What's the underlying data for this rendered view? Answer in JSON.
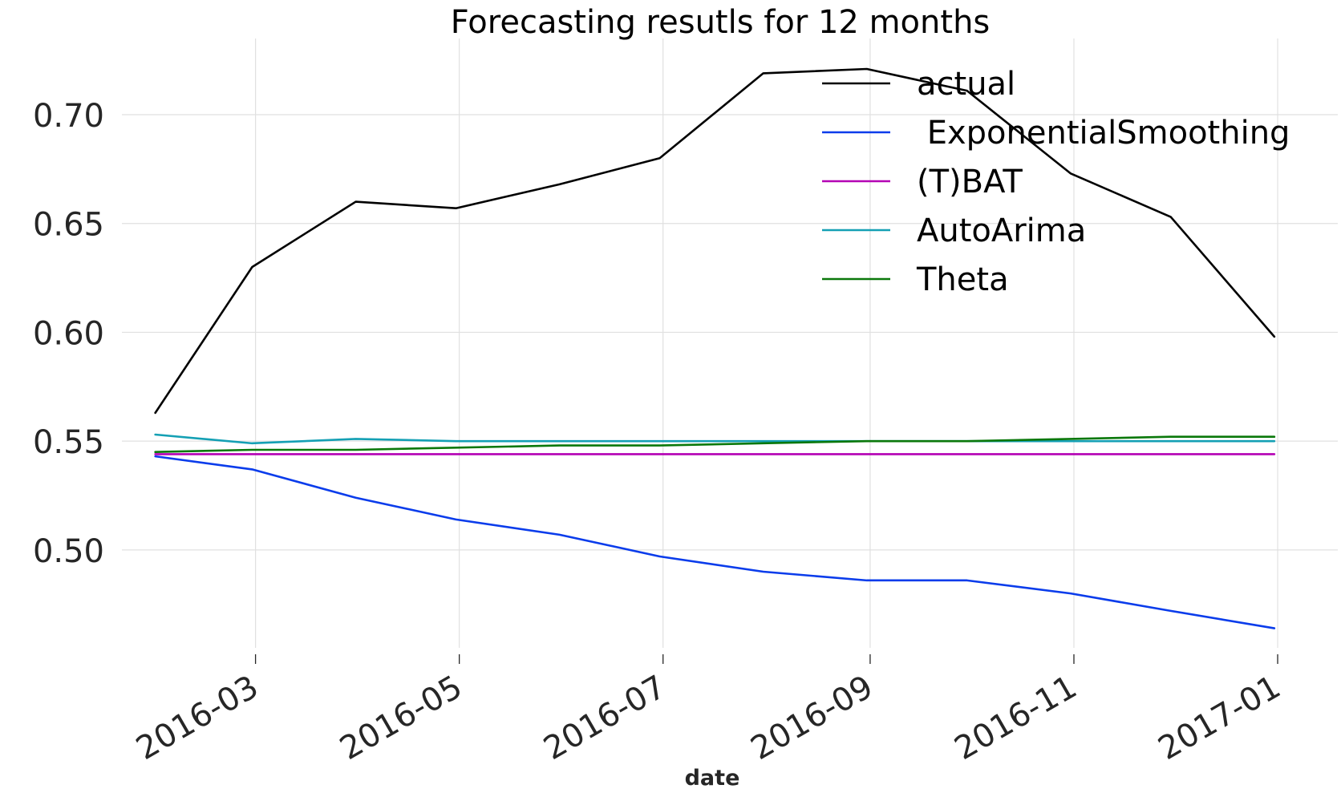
{
  "chart_data": {
    "type": "line",
    "title": "Forecasting resutls for 12 months",
    "xlabel": "date",
    "ylabel": "",
    "x": [
      "2016-01-31",
      "2016-02-29",
      "2016-03-31",
      "2016-04-30",
      "2016-05-31",
      "2016-06-30",
      "2016-07-31",
      "2016-08-31",
      "2016-09-30",
      "2016-10-31",
      "2016-11-30",
      "2016-12-31"
    ],
    "x_ticks": [
      "2016-03",
      "2016-05",
      "2016-07",
      "2016-09",
      "2016-11",
      "2017-01"
    ],
    "x_tick_dates": [
      "2016-03-01",
      "2016-05-01",
      "2016-07-01",
      "2016-09-01",
      "2016-11-01",
      "2017-01-01"
    ],
    "xlim": [
      "2016-01-21",
      "2017-01-19"
    ],
    "y_ticks": [
      "0.50",
      "0.55",
      "0.60",
      "0.65",
      "0.70"
    ],
    "y_tick_values": [
      0.5,
      0.55,
      0.6,
      0.65,
      0.7
    ],
    "ylim": [
      0.455,
      0.735
    ],
    "grid": true,
    "legend_position": "top-right",
    "series": [
      {
        "name": "actual",
        "color": "#000000",
        "values": [
          0.563,
          0.63,
          0.66,
          0.657,
          0.668,
          0.68,
          0.719,
          0.721,
          0.711,
          0.673,
          0.653,
          0.598
        ]
      },
      {
        "name": " ExponentialSmoothing",
        "color": "#0a3ceb",
        "values": [
          0.543,
          0.537,
          0.524,
          0.514,
          0.507,
          0.497,
          0.49,
          0.486,
          0.486,
          0.48,
          0.472,
          0.464
        ]
      },
      {
        "name": "(T)BAT",
        "color": "#b400b4",
        "values": [
          0.544,
          0.544,
          0.544,
          0.544,
          0.544,
          0.544,
          0.544,
          0.544,
          0.544,
          0.544,
          0.544,
          0.544
        ]
      },
      {
        "name": "AutoArima",
        "color": "#14a0b4",
        "values": [
          0.553,
          0.549,
          0.551,
          0.55,
          0.55,
          0.55,
          0.55,
          0.55,
          0.55,
          0.55,
          0.55,
          0.55
        ]
      },
      {
        "name": "Theta",
        "color": "#0a780a",
        "values": [
          0.545,
          0.546,
          0.546,
          0.547,
          0.548,
          0.548,
          0.549,
          0.55,
          0.55,
          0.551,
          0.552,
          0.552
        ]
      }
    ]
  }
}
